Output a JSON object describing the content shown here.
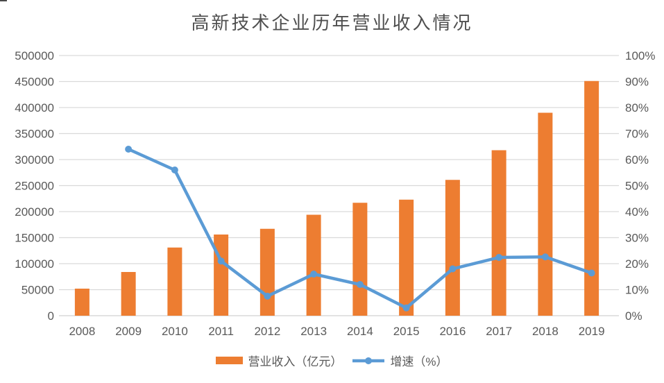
{
  "chart_data": {
    "type": "bar",
    "title": "高新技术企业历年营业收入情况",
    "categories": [
      "2008",
      "2009",
      "2010",
      "2011",
      "2012",
      "2013",
      "2014",
      "2015",
      "2016",
      "2017",
      "2018",
      "2019"
    ],
    "series": [
      {
        "name": "营业收入（亿元）",
        "type": "bar",
        "axis": "left",
        "color": "#ED7D31",
        "values": [
          52000,
          84000,
          131000,
          156000,
          167000,
          194000,
          217000,
          223000,
          261000,
          318000,
          390000,
          451000
        ]
      },
      {
        "name": "增速（%）",
        "type": "line",
        "axis": "right",
        "color": "#5B9BD5",
        "values": [
          null,
          64,
          56,
          21,
          7.5,
          16,
          12,
          3,
          18,
          22.4,
          22.6,
          16.4
        ]
      }
    ],
    "left_axis": {
      "min": 0,
      "max": 500000,
      "step": 50000,
      "tick_labels": [
        "500000",
        "450000",
        "400000",
        "350000",
        "300000",
        "250000",
        "200000",
        "150000",
        "100000",
        "50000",
        "0"
      ]
    },
    "right_axis": {
      "min": 0,
      "max": 100,
      "step": 10,
      "tick_labels": [
        "100%",
        "90%",
        "80%",
        "70%",
        "60%",
        "50%",
        "40%",
        "30%",
        "20%",
        "10%",
        "0%"
      ]
    },
    "grid": true,
    "legend_position": "bottom",
    "colors": {
      "grid_line": "#D9D9D9",
      "axis_line": "#D9D9D9",
      "tick_text": "#595959",
      "title_text": "#4f4f4f",
      "bar": "#ED7D31",
      "line": "#5B9BD5"
    }
  }
}
